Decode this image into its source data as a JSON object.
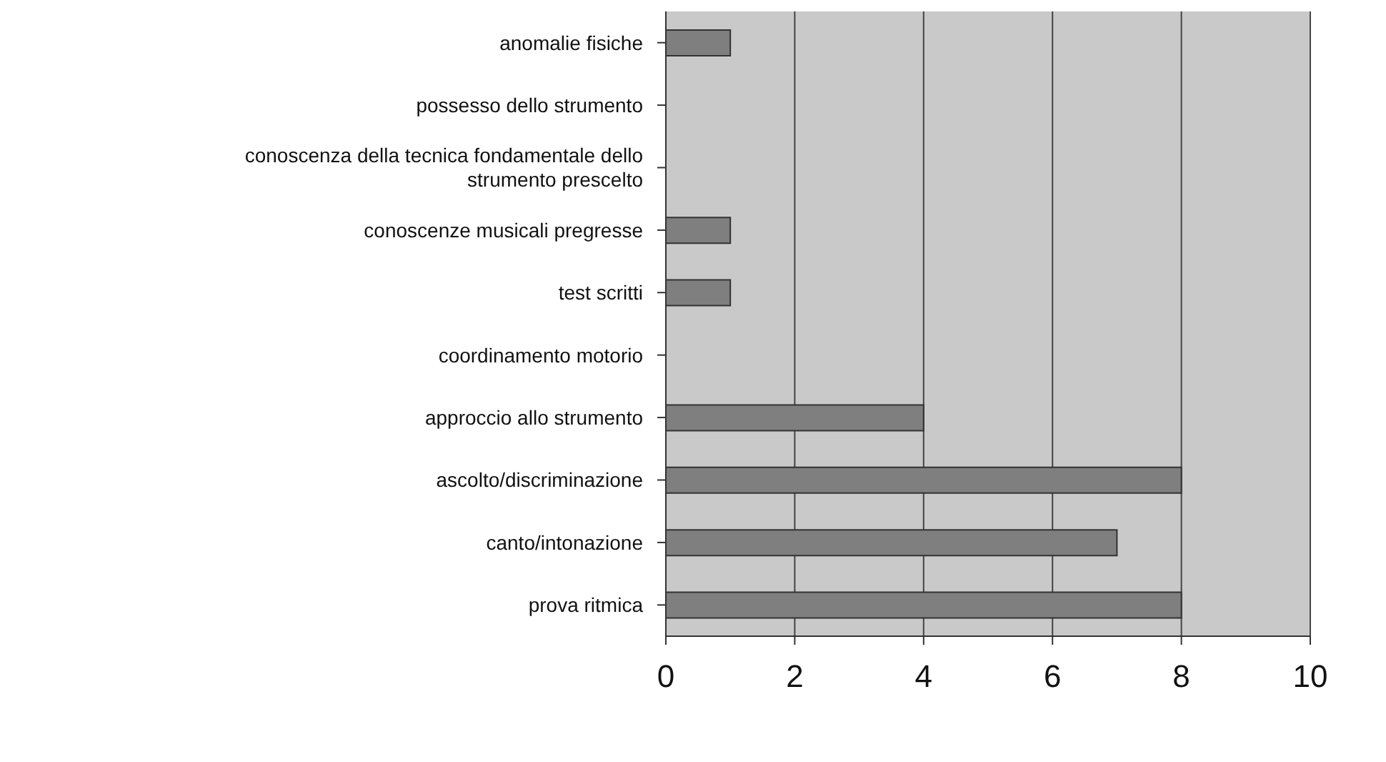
{
  "chart_data": {
    "type": "bar",
    "orientation": "horizontal",
    "categories": [
      "anomalie fisiche",
      "possesso dello strumento",
      "conoscenza della tecnica fondamentale dello strumento prescelto",
      "conoscenze musicali pregresse",
      "test scritti",
      "coordinamento motorio",
      "approccio allo strumento",
      "ascolto/discriminazione",
      "canto/intonazione",
      "prova ritmica"
    ],
    "values": [
      1,
      0,
      0,
      1,
      1,
      0,
      4,
      8,
      7,
      8
    ],
    "color": "#7f7f7f",
    "xlim": [
      0,
      10
    ],
    "xticks": [
      0,
      2,
      4,
      6,
      8,
      10
    ],
    "grid": "x",
    "legend": false
  }
}
